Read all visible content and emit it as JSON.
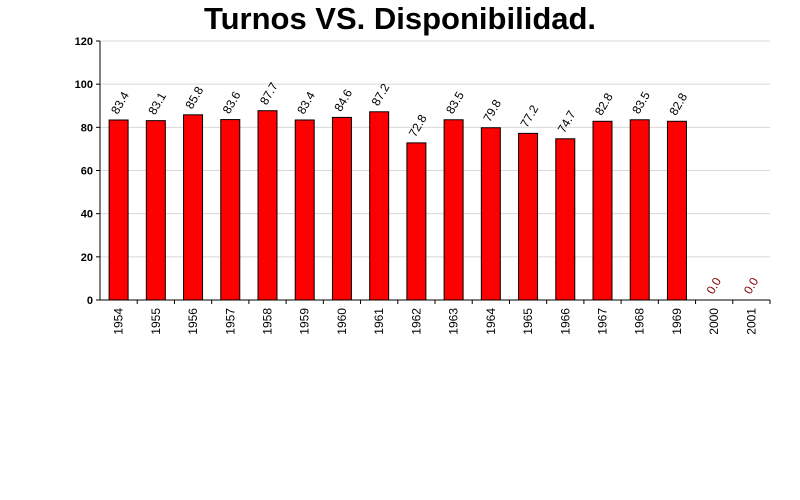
{
  "chart_data": {
    "type": "bar",
    "title": "Turnos VS. Disponibilidad.",
    "categories": [
      "1954",
      "1955",
      "1956",
      "1957",
      "1958",
      "1959",
      "1960",
      "1961",
      "1962",
      "1963",
      "1964",
      "1965",
      "1966",
      "1967",
      "1968",
      "1969",
      "2000",
      "2001"
    ],
    "values": [
      83.4,
      83.1,
      85.8,
      83.6,
      87.7,
      83.4,
      84.6,
      87.2,
      72.8,
      83.5,
      79.8,
      77.2,
      74.7,
      82.8,
      83.5,
      82.8,
      0.0,
      0.0
    ],
    "value_labels": [
      "83.4",
      "83.1",
      "85.8",
      "83.6",
      "87.7",
      "83.4",
      "84.6",
      "87.2",
      "72.8",
      "83.5",
      "79.8",
      "77.2",
      "74.7",
      "82.8",
      "83.5",
      "82.8",
      "0.0",
      "0.0"
    ],
    "ylim": [
      0,
      120
    ],
    "yticks": [
      "0",
      "20",
      "40",
      "60",
      "80",
      "100",
      "120"
    ],
    "grid": true,
    "colors": {
      "bar": "#ff0000",
      "label": "#000000",
      "zero_label": "#8b0000",
      "grid": "#d8d8d8"
    }
  }
}
